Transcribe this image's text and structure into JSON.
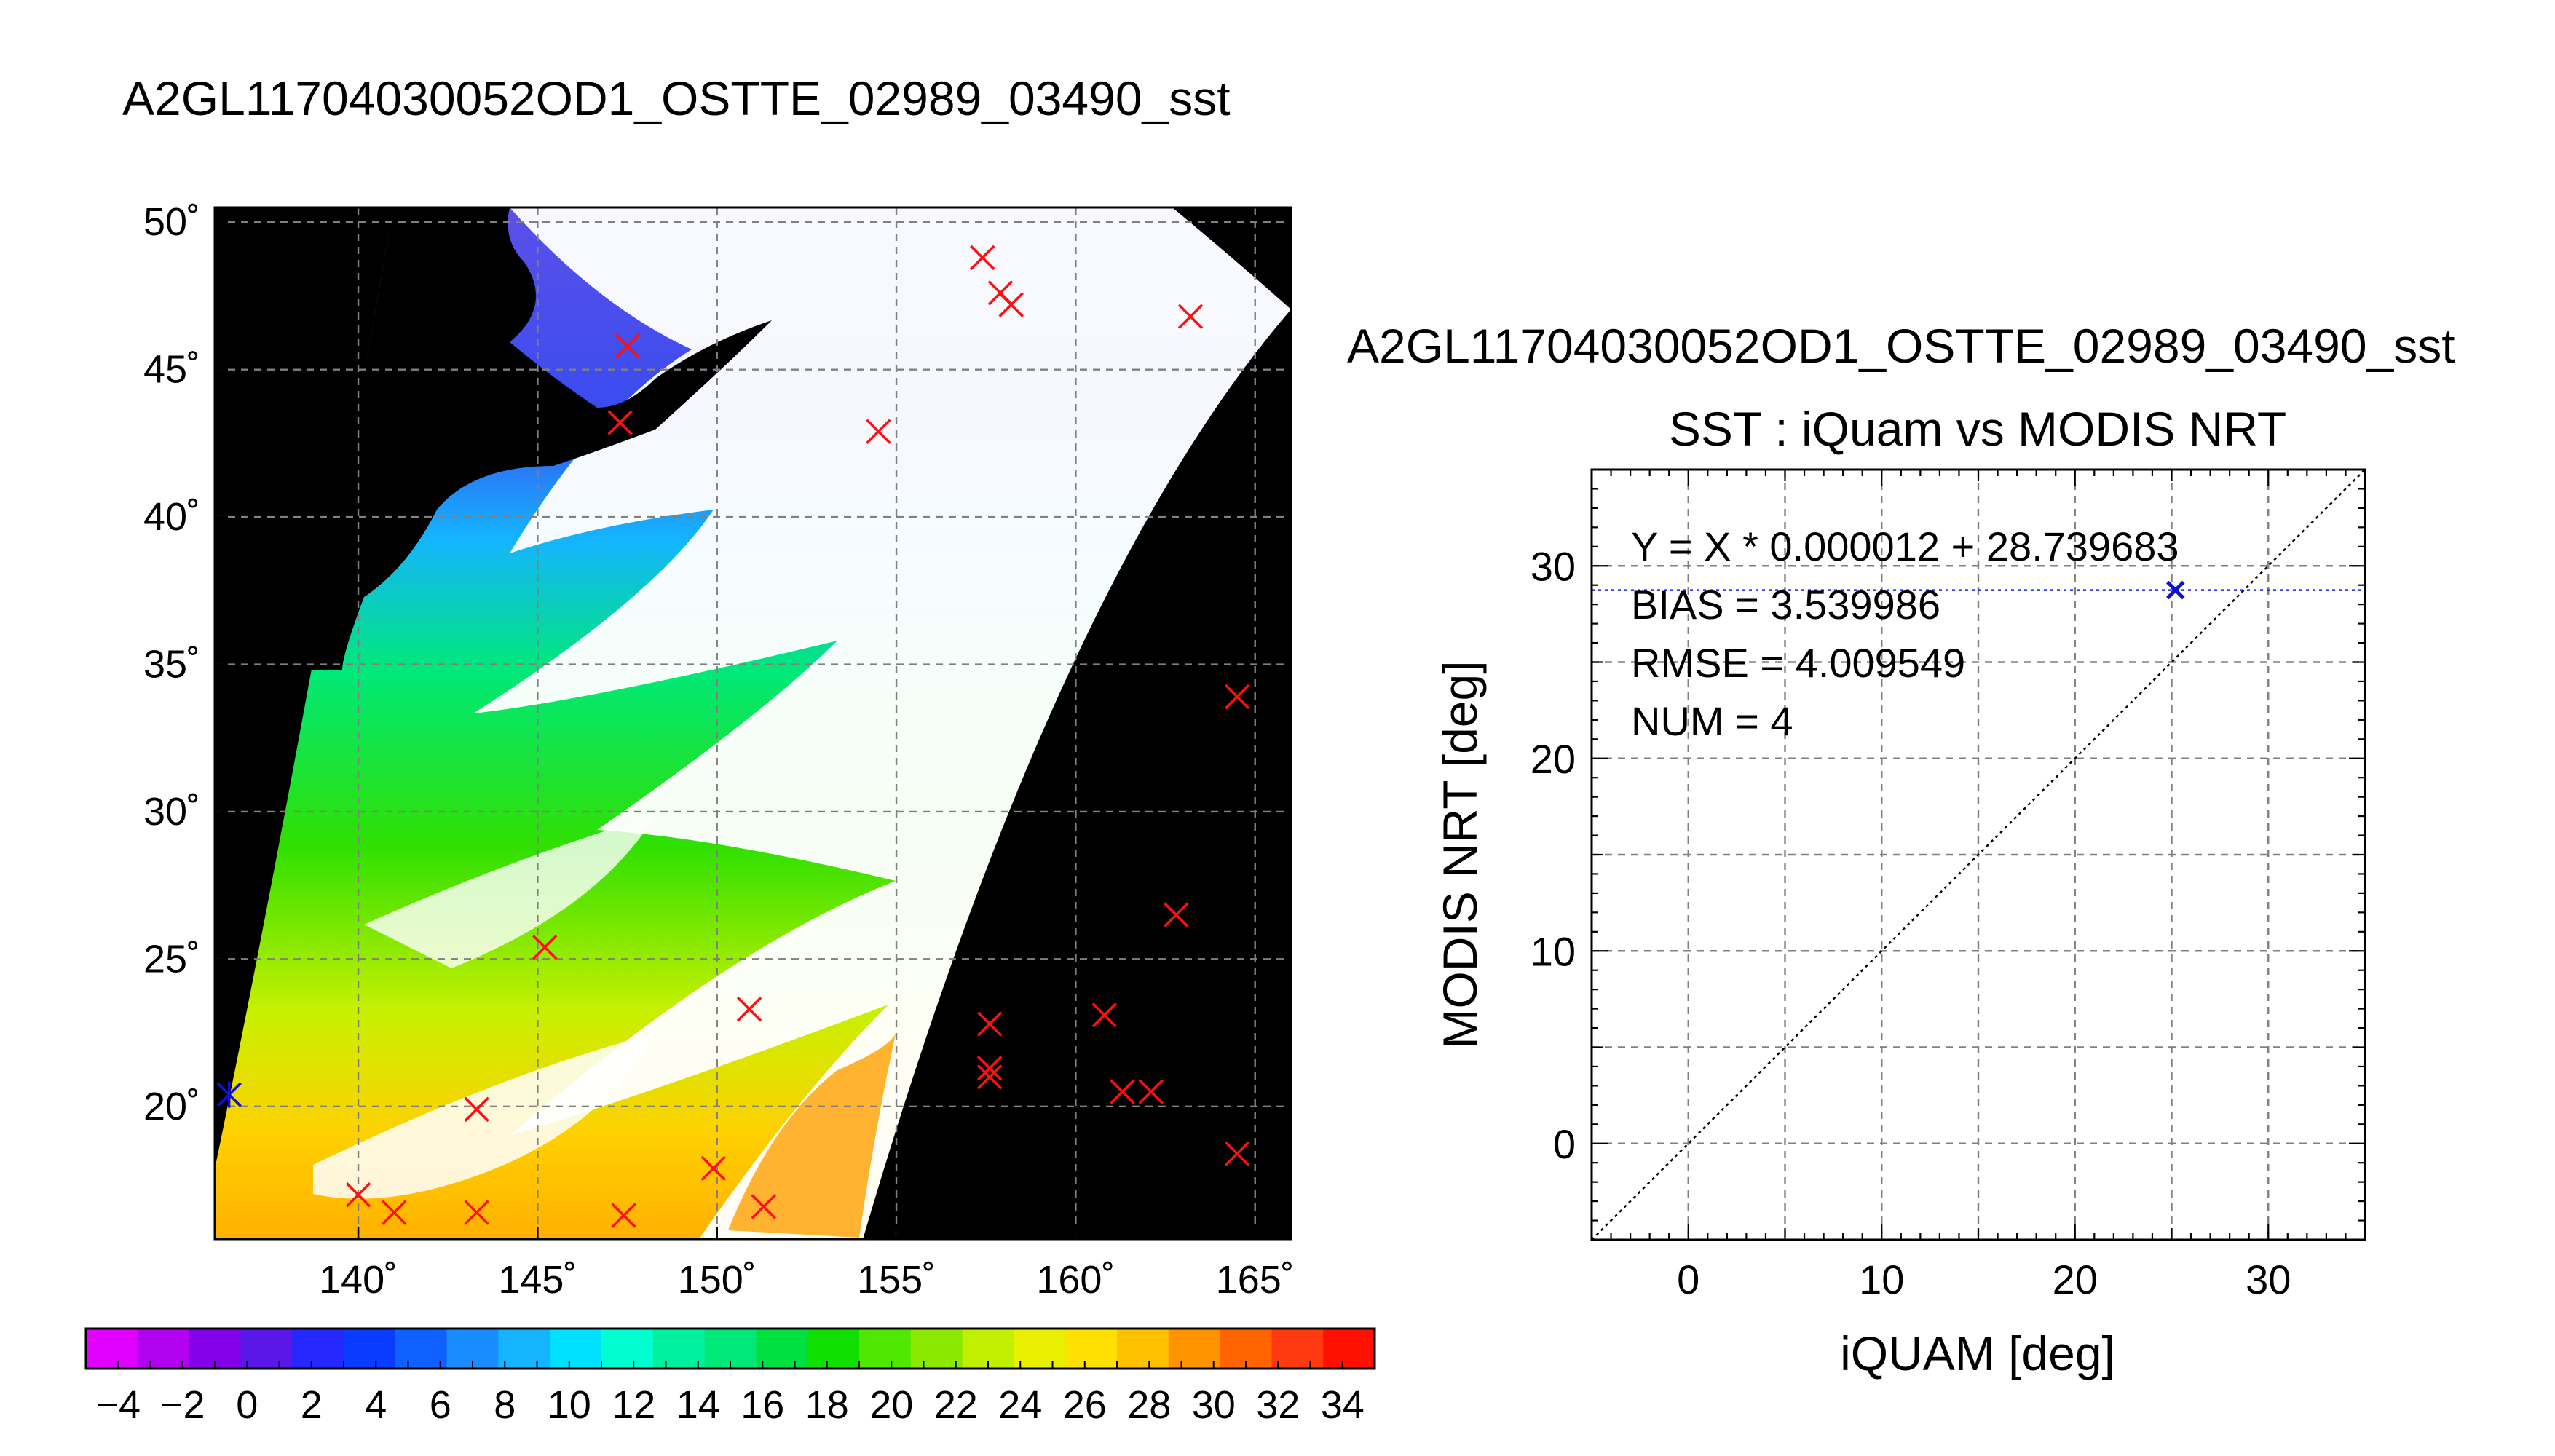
{
  "page": {
    "main_title": "A2GL11704030052OD1_OSTTE_02989_03490_sst"
  },
  "chart_data": [
    {
      "type": "map",
      "title": "A2GL11704030052OD1_OSTTE_02989_03490_sst",
      "lon_range": [
        136,
        166
      ],
      "lat_range": [
        15.5,
        50.5
      ],
      "x_ticks": [
        140,
        145,
        150,
        155,
        160,
        165
      ],
      "y_ticks": [
        20,
        25,
        30,
        35,
        40,
        45,
        50
      ],
      "x_tick_labels": [
        "140˚",
        "145˚",
        "150˚",
        "155˚",
        "160˚",
        "165˚"
      ],
      "y_tick_labels": [
        "20˚",
        "25˚",
        "30˚",
        "35˚",
        "40˚",
        "45˚",
        "50˚"
      ],
      "grid": true,
      "swath_color_note": "sst values shown by colour within swath",
      "markers_red_x": [
        [
          157.4,
          48.8
        ],
        [
          157.9,
          47.6
        ],
        [
          158.2,
          47.2
        ],
        [
          163.2,
          46.8
        ],
        [
          147.5,
          45.8
        ],
        [
          147.3,
          43.2
        ],
        [
          154.5,
          42.9
        ],
        [
          164.5,
          33.9
        ],
        [
          162.8,
          26.5
        ],
        [
          145.2,
          25.4
        ],
        [
          157.6,
          22.8
        ],
        [
          160.8,
          23.1
        ],
        [
          150.9,
          23.3
        ],
        [
          157.6,
          21.3
        ],
        [
          157.6,
          21.0
        ],
        [
          161.3,
          20.5
        ],
        [
          162.1,
          20.5
        ],
        [
          143.3,
          19.9
        ],
        [
          164.5,
          18.4
        ],
        [
          149.9,
          17.9
        ],
        [
          140.0,
          17.0
        ],
        [
          141.0,
          16.4
        ],
        [
          143.3,
          16.4
        ],
        [
          147.4,
          16.3
        ],
        [
          151.3,
          16.6
        ]
      ],
      "markers_blue": [
        [
          136.4,
          20.4
        ]
      ]
    },
    {
      "type": "scatter",
      "title_line1": "A2GL11704030052OD1_OSTTE_02989_03490_sst",
      "title_line2": "SST : iQuam vs MODIS NRT",
      "xlabel": "iQUAM [deg]",
      "ylabel": "MODIS NRT [deg]",
      "xlim": [
        -5,
        35
      ],
      "ylim": [
        -5,
        35
      ],
      "x_ticks": [
        0,
        10,
        20,
        30
      ],
      "y_ticks": [
        0,
        10,
        20,
        30
      ],
      "x_tick_labels": [
        "0",
        "10",
        "20",
        "30"
      ],
      "y_tick_labels": [
        "0",
        "10",
        "20",
        "30"
      ],
      "grid": true,
      "identity_line": true,
      "fit": {
        "slope": 1.2e-05,
        "intercept": 28.739683
      },
      "points": [
        {
          "x": 25.2,
          "y": 28.74
        }
      ],
      "stats": {
        "equation": "Y = X * 0.000012 + 28.739683",
        "bias": "BIAS = 3.539986",
        "rmse": "RMSE = 4.009549",
        "num": "NUM = 4"
      },
      "colors": {
        "fit_line": "#2020e0",
        "point": "#1010d0"
      }
    }
  ],
  "colorbar": {
    "min": -5,
    "max": 35,
    "step": 2,
    "tick_labels": [
      "−4",
      "−2",
      "0",
      "2",
      "4",
      "6",
      "8",
      "10",
      "12",
      "14",
      "16",
      "18",
      "20",
      "22",
      "24",
      "26",
      "28",
      "30",
      "32",
      "34"
    ],
    "colors": [
      "#e000ff",
      "#b200f0",
      "#8400e8",
      "#5a18e8",
      "#2626ff",
      "#0a3cff",
      "#1060ff",
      "#1a8cff",
      "#14b4ff",
      "#00e0ff",
      "#00ffd0",
      "#00f0a0",
      "#00e878",
      "#00e040",
      "#10e000",
      "#50e800",
      "#8ce800",
      "#c0f000",
      "#e8f000",
      "#ffe000",
      "#ffc000",
      "#ff9400",
      "#ff6400",
      "#ff3a10",
      "#ff1000"
    ]
  }
}
